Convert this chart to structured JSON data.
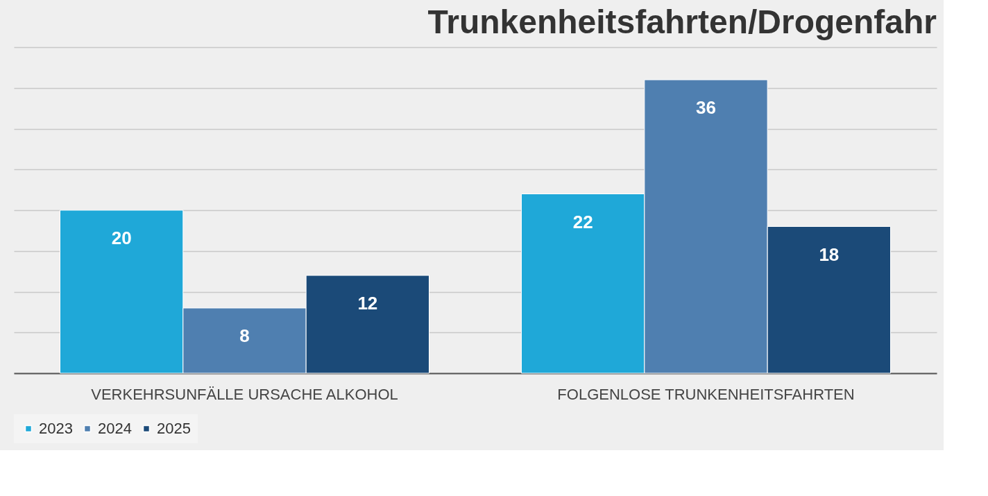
{
  "chart_data": {
    "type": "bar",
    "title": "Trunkenheitsfahrten/Drogenfahr",
    "categories": [
      "VERKEHRSUNFÄLLE URSACHE ALKOHOL",
      "FOLGENLOSE TRUNKENHEITSFAHRTEN"
    ],
    "series": [
      {
        "name": "2023",
        "color": "#1fa8d8",
        "values": [
          20,
          22
        ]
      },
      {
        "name": "2024",
        "color": "#4f7fb0",
        "values": [
          8,
          36
        ]
      },
      {
        "name": "2025",
        "color": "#1b4a78",
        "values": [
          12,
          18
        ]
      }
    ],
    "ylim": [
      0,
      40
    ],
    "yticks": [
      {
        "value": 0,
        "label": null
      },
      {
        "value": 5,
        "label": null
      },
      {
        "value": 10,
        "label": null
      },
      {
        "value": 15,
        "label": null
      },
      {
        "value": 20,
        "label": null
      },
      {
        "value": 25,
        "label": null
      },
      {
        "value": 30,
        "label": null
      },
      {
        "value": 35,
        "label": null
      },
      {
        "value": 40,
        "label": null
      }
    ],
    "tick_labels": "x",
    "grid": "y",
    "legend": "bottom",
    "data_labels": true
  }
}
